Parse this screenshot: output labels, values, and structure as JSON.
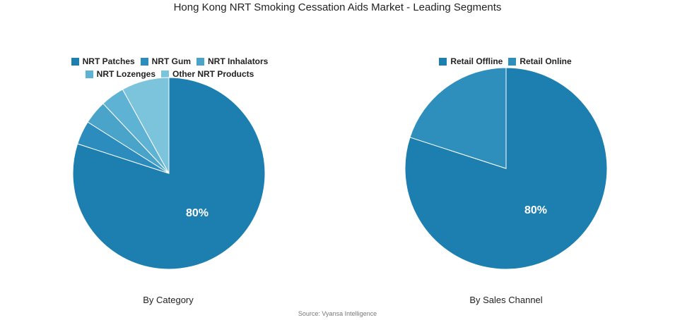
{
  "title": "Hong Kong NRT Smoking Cessation Aids Market - Leading Segments",
  "source": "Source: Vyansa Intelligence",
  "chart_data": [
    {
      "type": "pie",
      "subtitle": "By Category",
      "legend_position": "top",
      "start_angle": "top, clockwise",
      "slices": [
        {
          "label": "NRT Patches",
          "value": 80,
          "color": "#1d7fb0",
          "data_label": "80%"
        },
        {
          "label": "NRT Gum",
          "value": 4,
          "color": "#2b8cbd",
          "data_label": ""
        },
        {
          "label": "NRT Inhalators",
          "value": 4,
          "color": "#4aa3c9",
          "data_label": ""
        },
        {
          "label": "NRT Lozenges",
          "value": 4,
          "color": "#5eb2d3",
          "data_label": ""
        },
        {
          "label": "Other NRT Products",
          "value": 8,
          "color": "#7cc3dc",
          "data_label": ""
        }
      ]
    },
    {
      "type": "pie",
      "subtitle": "By Sales Channel",
      "legend_position": "top",
      "start_angle": "top, clockwise",
      "slices": [
        {
          "label": "Retail Offline",
          "value": 80,
          "color": "#1d7fb0",
          "data_label": "80%"
        },
        {
          "label": "Retail Online",
          "value": 20,
          "color": "#2f8fbc",
          "data_label": ""
        }
      ]
    }
  ]
}
